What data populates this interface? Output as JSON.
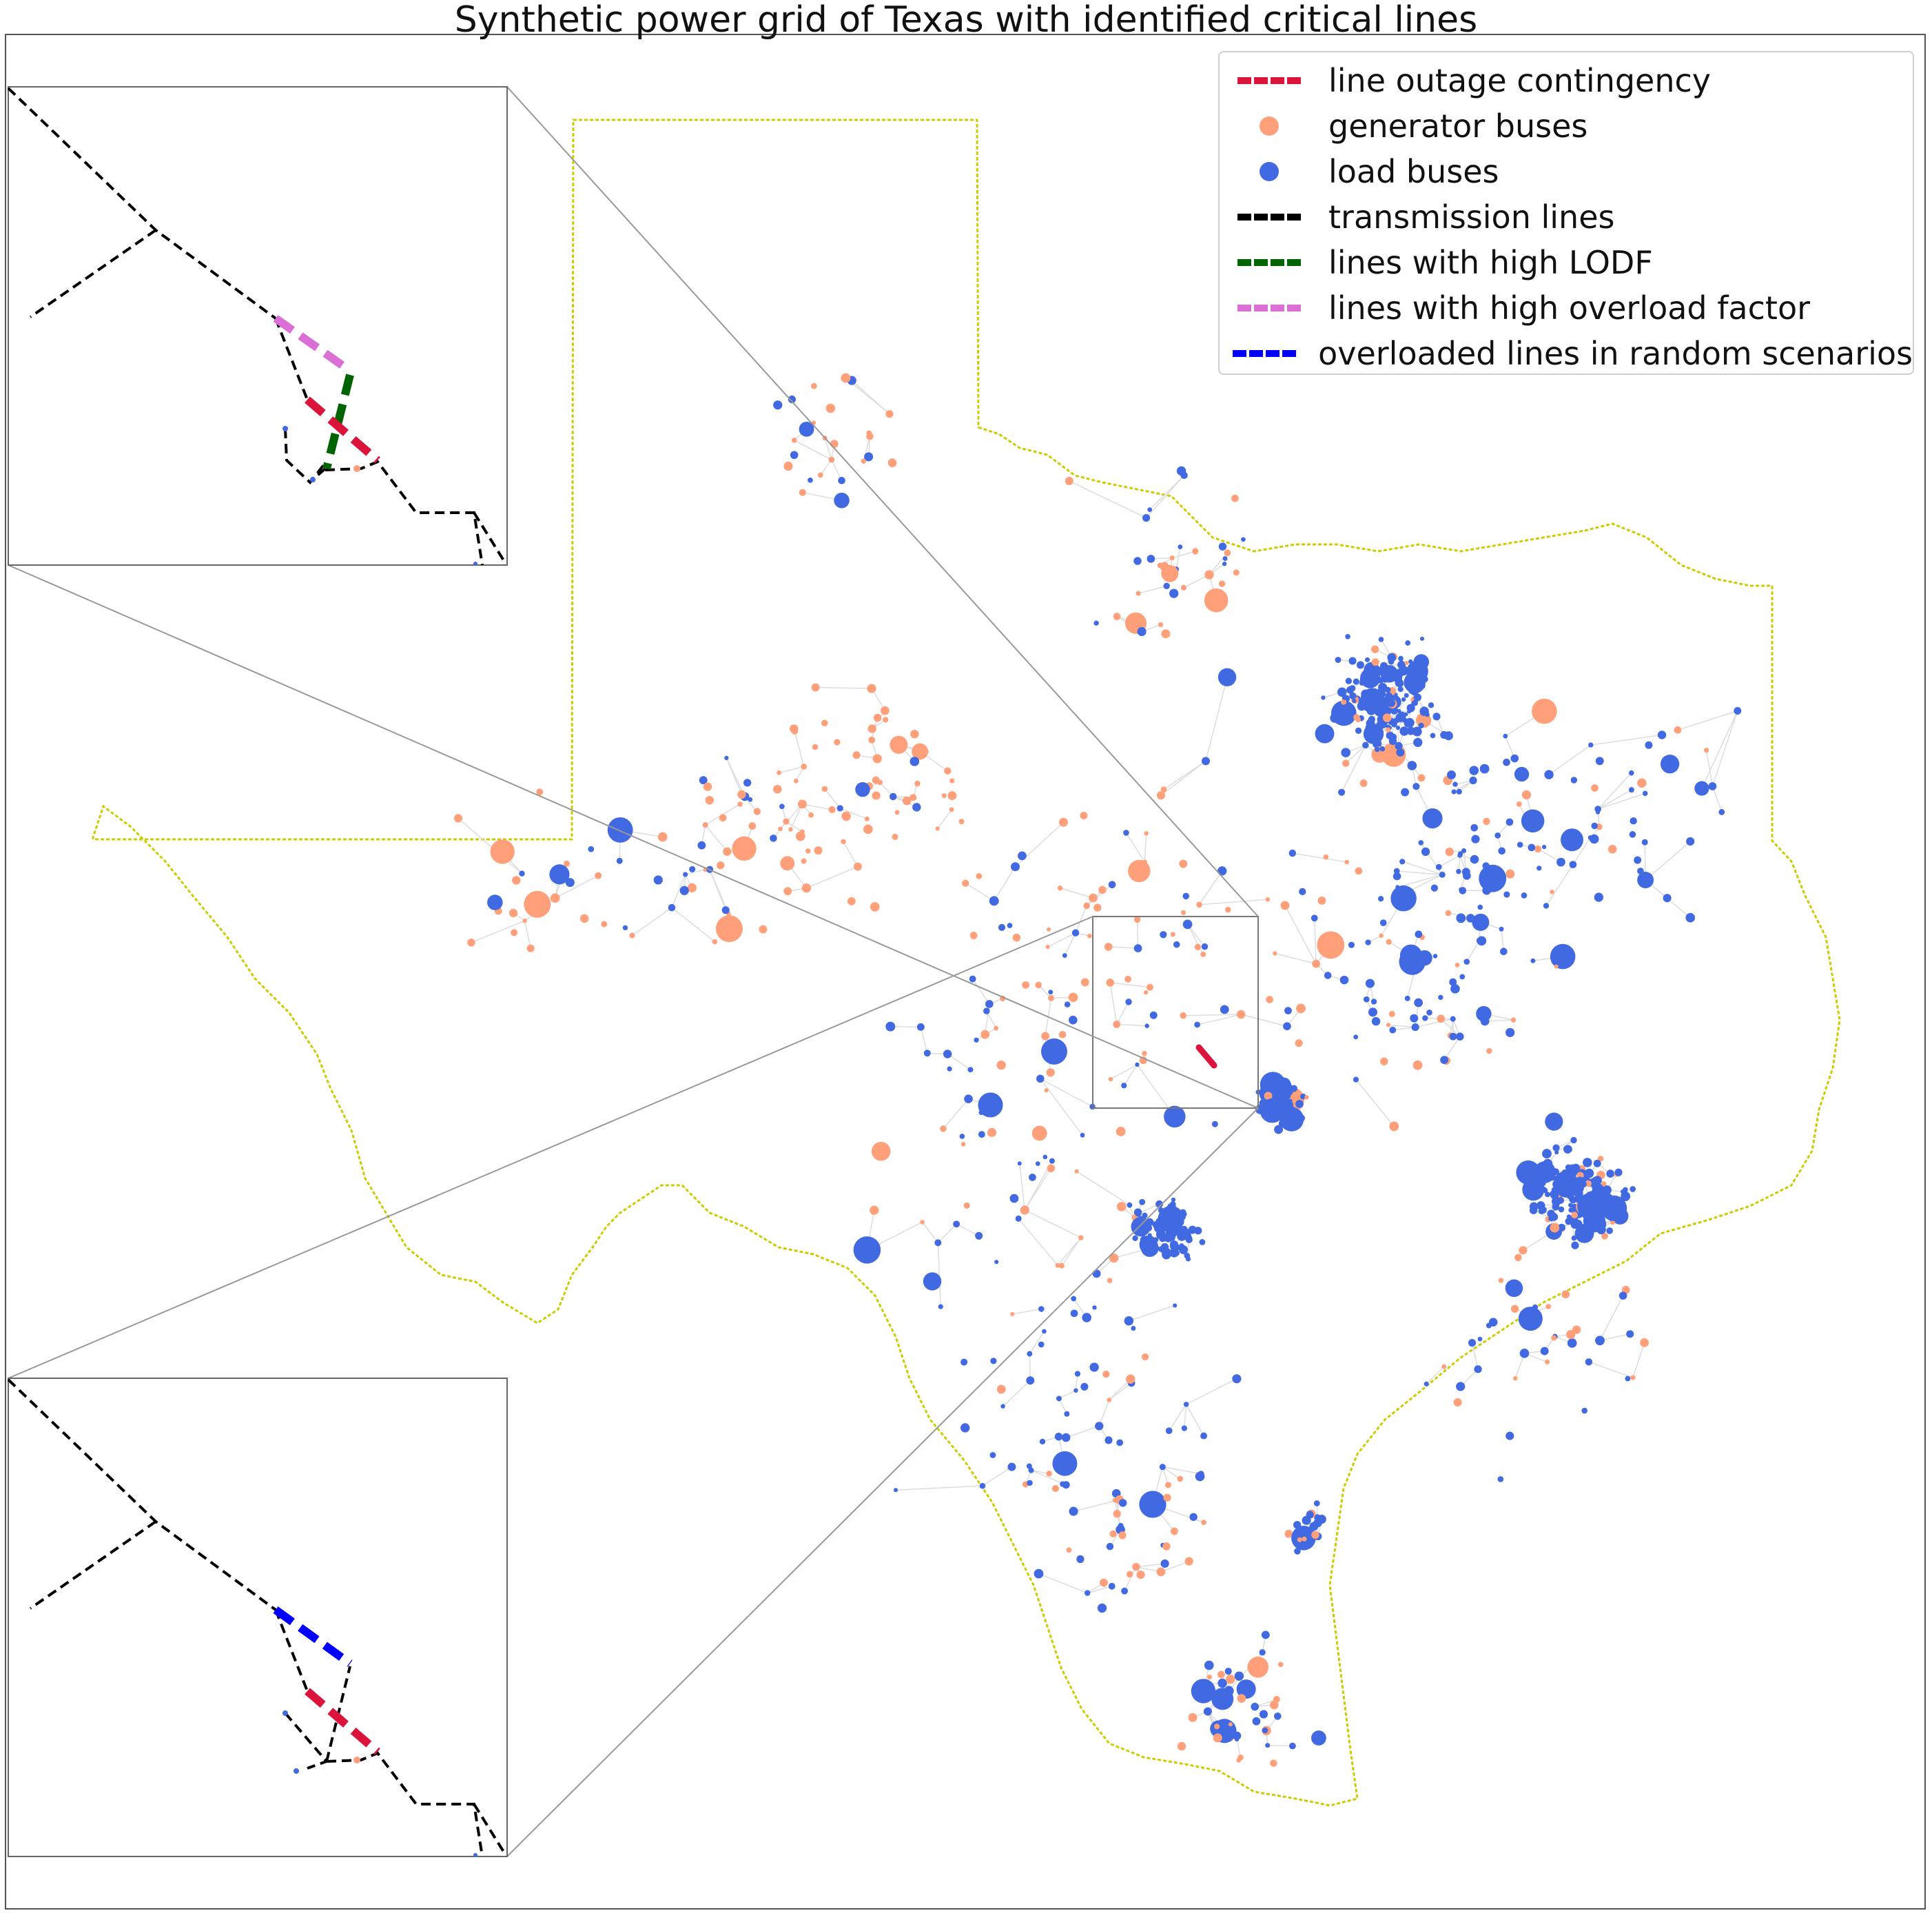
{
  "title": "Synthetic power grid of Texas with identified critical lines",
  "colors": {
    "outage": "#dc143c",
    "generator": "#ffa07a",
    "load": "#4169e1",
    "transmission": "#000000",
    "lodf": "#006400",
    "overload": "#da70d6",
    "random": "#0000ff",
    "border": "#cccc00",
    "grid_line": "#dddddd"
  },
  "legend": {
    "placement": "upper right",
    "entries": [
      {
        "label": "line outage contingency",
        "style": "dashed-line",
        "color_key": "outage"
      },
      {
        "label": "generator buses",
        "style": "dot",
        "color_key": "generator"
      },
      {
        "label": "load buses",
        "style": "dot",
        "color_key": "load"
      },
      {
        "label": "transmission lines",
        "style": "dashed-line",
        "color_key": "transmission"
      },
      {
        "label": "lines with high LODF",
        "style": "dashed-line",
        "color_key": "lodf"
      },
      {
        "label": "lines with high overload factor",
        "style": "dashed-line",
        "color_key": "overload"
      },
      {
        "label": "overloaded lines in random scenarios",
        "style": "dashed-line",
        "color_key": "random"
      }
    ]
  },
  "insets": [
    {
      "name": "inset-top",
      "highlight_lines": [
        "overload",
        "lodf",
        "outage"
      ]
    },
    {
      "name": "inset-bottom",
      "highlight_lines": [
        "random",
        "outage"
      ]
    }
  ]
}
